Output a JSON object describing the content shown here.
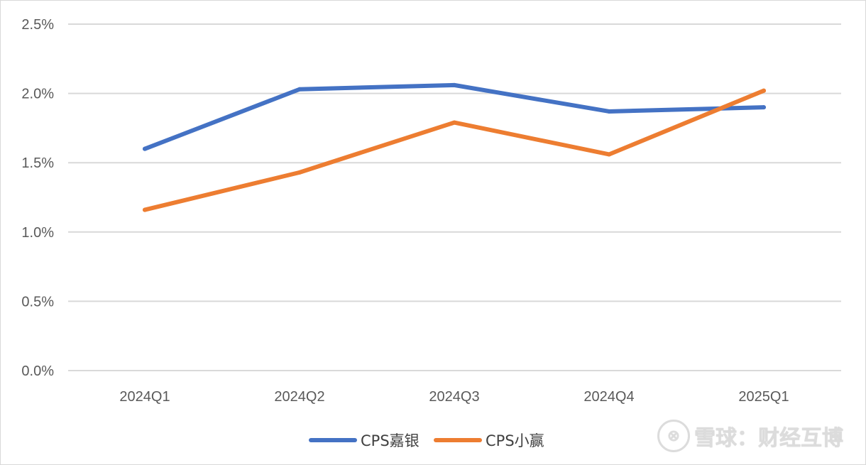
{
  "chart_data": {
    "type": "line",
    "title": "",
    "xlabel": "",
    "ylabel": "",
    "categories": [
      "2024Q1",
      "2024Q2",
      "2024Q3",
      "2024Q4",
      "2025Q1"
    ],
    "y_ticks": [
      "0.0%",
      "0.5%",
      "1.0%",
      "1.5%",
      "2.0%",
      "2.5%"
    ],
    "ylim": [
      0,
      2.5
    ],
    "y_unit": "%",
    "grid": true,
    "legend_position": "bottom",
    "series": [
      {
        "name": "CPS嘉银",
        "color": "#4472c4",
        "values": [
          1.6,
          2.03,
          2.06,
          1.87,
          1.9
        ]
      },
      {
        "name": "CPS小赢",
        "color": "#ed7d31",
        "values": [
          1.16,
          1.43,
          1.79,
          1.56,
          2.02
        ]
      }
    ]
  },
  "watermark": {
    "logo": "⊗",
    "text": "雪球：财经互博"
  }
}
